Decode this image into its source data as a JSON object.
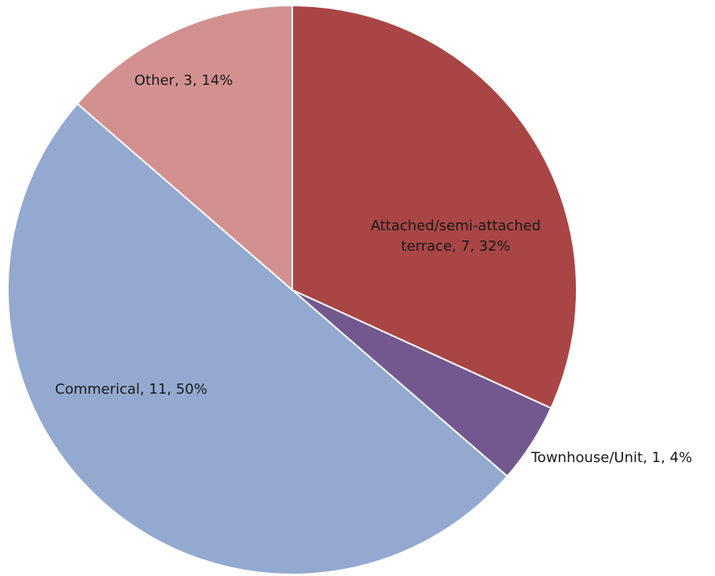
{
  "chart_data": {
    "type": "pie",
    "title": "",
    "slices": [
      {
        "label": "Attached/semi-attached terrace",
        "value": 7,
        "percent": 32,
        "color": "#A94645",
        "label_text_lines": [
          "Attached/semi-attached",
          "terrace, 7, 32%"
        ]
      },
      {
        "label": "Townhouse/Unit",
        "value": 1,
        "percent": 4,
        "color": "#72588F",
        "label_text_lines": [
          "Townhouse/Unit, 1, 4%"
        ]
      },
      {
        "label": "Commerical",
        "value": 11,
        "percent": 50,
        "color": "#93A9D0",
        "label_text_lines": [
          "Commerical, 11, 50%"
        ]
      },
      {
        "label": "Other",
        "value": 3,
        "percent": 14,
        "color": "#D29190",
        "label_text_lines": [
          "Other, 3, 14%"
        ]
      }
    ],
    "legend": "none",
    "start_angle": "12 o'clock",
    "direction": "clockwise"
  }
}
